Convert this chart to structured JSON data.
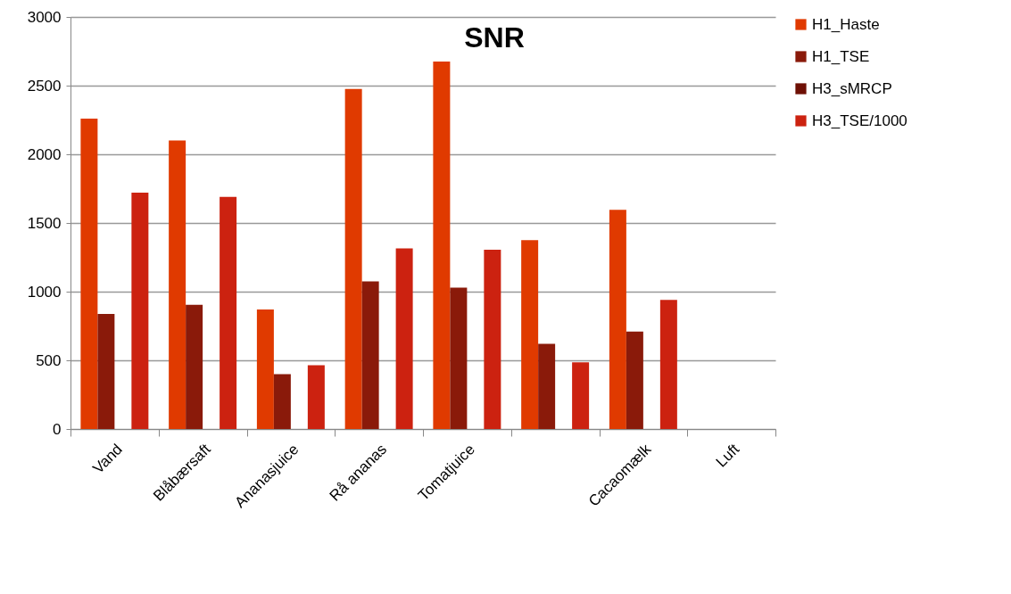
{
  "chart_data": {
    "type": "bar",
    "title": "SNR",
    "categories": [
      "Vand",
      "Blåbærsaft",
      "Ananasjuice",
      "Rå ananas",
      "Tomatjuice",
      null,
      "Cacaomælk",
      "Luft"
    ],
    "series": [
      {
        "name": "H1_Haste",
        "color": "#e03a00",
        "values": [
          2260,
          2100,
          870,
          2475,
          2675,
          1375,
          1595,
          null
        ]
      },
      {
        "name": "H1_TSE",
        "color": "#8a1a0a",
        "values": [
          838,
          905,
          400,
          1075,
          1030,
          620,
          710,
          null
        ]
      },
      {
        "name": "H3_sMRCP",
        "color": "#6e1005",
        "values": [
          null,
          null,
          null,
          null,
          null,
          null,
          null,
          null
        ]
      },
      {
        "name": "H3_TSE/1000",
        "color": "#cc2210",
        "values": [
          1720,
          1690,
          465,
          1315,
          1305,
          485,
          940,
          null
        ]
      }
    ],
    "ylim": [
      0,
      3000
    ],
    "yticks": [
      0,
      500,
      1000,
      1500,
      2000,
      2500,
      3000
    ],
    "grid": "y",
    "legend": "right"
  }
}
